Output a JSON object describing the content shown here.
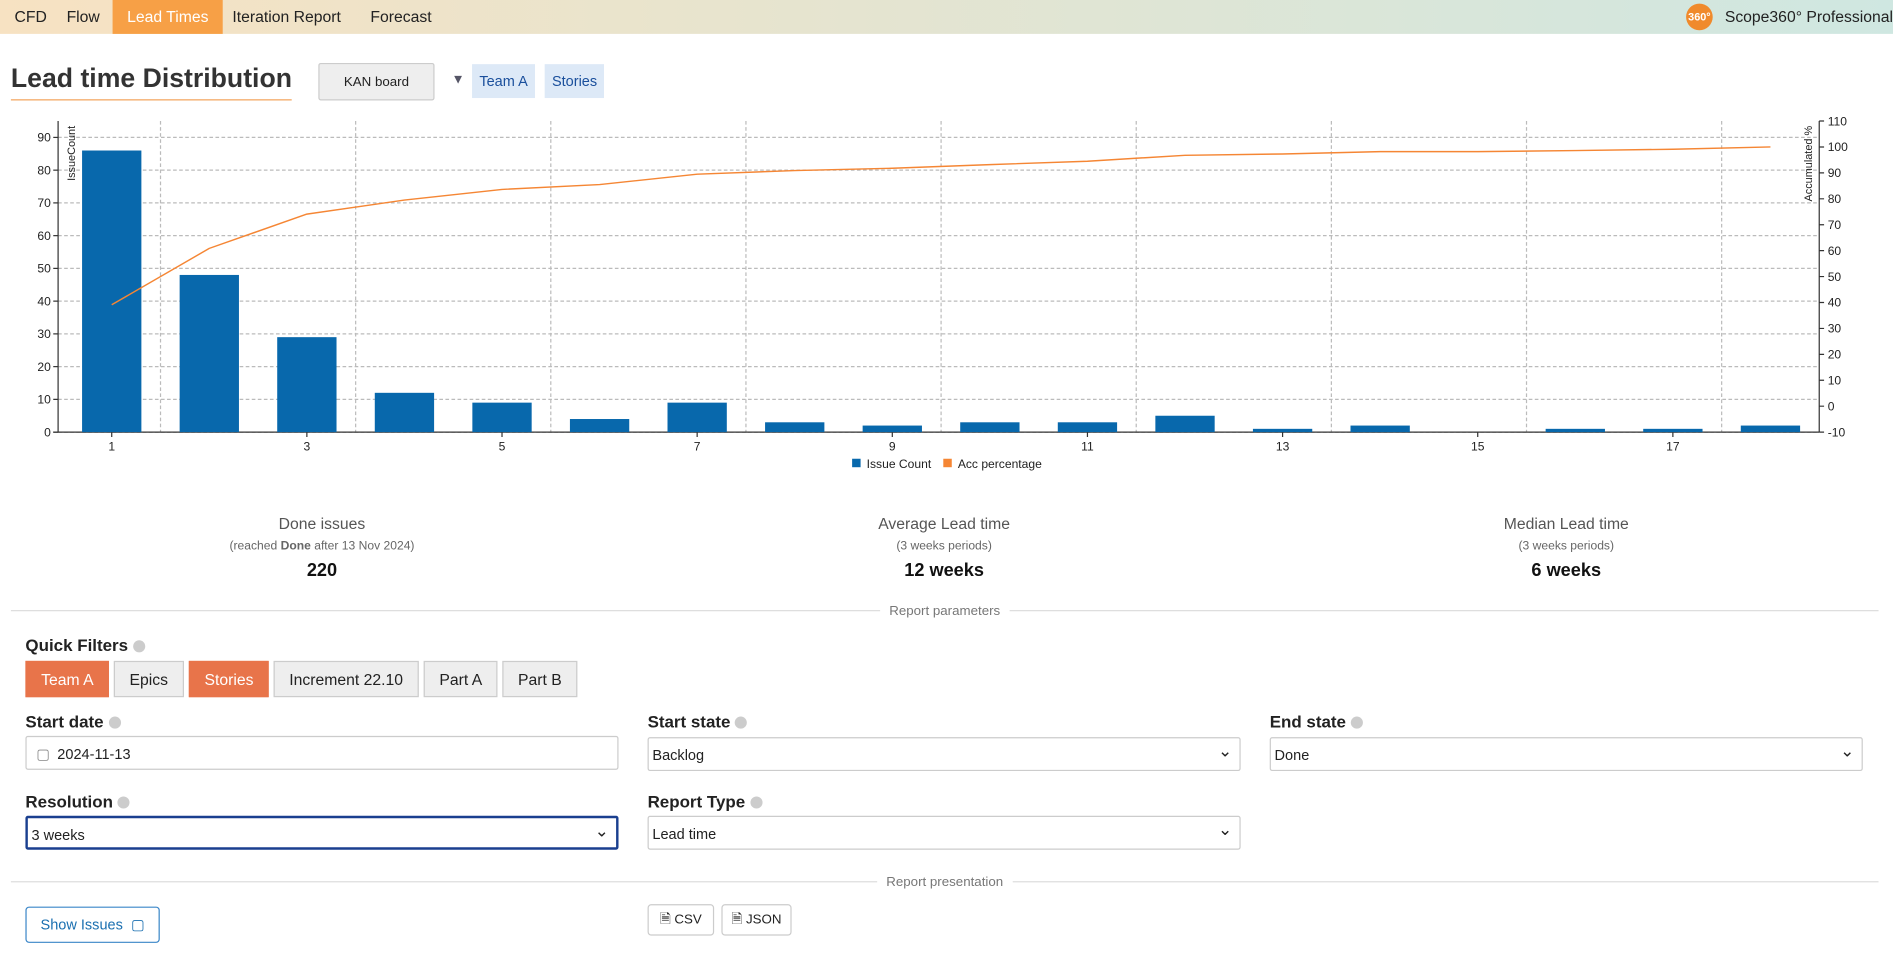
{
  "nav": {
    "items": [
      "CFD",
      "Flow",
      "Lead Times",
      "Iteration Report",
      "Forecast"
    ],
    "active": 2,
    "logo": "360°",
    "brand": "Scope360° Professional"
  },
  "header": {
    "title": "Lead time Distribution",
    "board": "KAN board",
    "filters": [
      "Team A",
      "Stories"
    ]
  },
  "chart_data": {
    "type": "bar",
    "categories": [
      "1",
      null,
      "3",
      null,
      "5",
      null,
      "7",
      null,
      "9",
      null,
      "11",
      null,
      "13",
      null,
      "15",
      null,
      "17",
      null
    ],
    "series": [
      {
        "name": "Issue Count",
        "type": "bar",
        "color": "#0868ac",
        "values": [
          86,
          48,
          29,
          12,
          9,
          4,
          9,
          3,
          2,
          3,
          3,
          5,
          1,
          2,
          0,
          1,
          1,
          2
        ]
      },
      {
        "name": "Acc percentage",
        "type": "line",
        "axis": "y2",
        "color": "#f58634",
        "values": [
          39.1,
          60.9,
          74.1,
          79.5,
          83.6,
          85.5,
          89.5,
          90.9,
          91.8,
          93.2,
          94.5,
          96.8,
          97.3,
          98.2,
          98.2,
          98.6,
          99.1,
          100
        ]
      }
    ],
    "ylabel": "IssueCount",
    "y2label": "Accumulated %",
    "ylim": [
      0,
      95
    ],
    "yticks": [
      0,
      10,
      20,
      30,
      40,
      50,
      60,
      70,
      80,
      90
    ],
    "y2lim": [
      -10,
      110
    ],
    "y2ticks": [
      -10,
      0,
      10,
      20,
      30,
      40,
      50,
      60,
      70,
      80,
      90,
      100,
      110
    ],
    "grid": true
  },
  "stats": [
    {
      "label": "Done issues",
      "note": [
        "(reached ",
        "Done",
        " after 13 Nov 2024)"
      ],
      "value": "220"
    },
    {
      "label": "Average Lead time",
      "note": [
        "(3 weeks periods)"
      ],
      "value": "12 weeks"
    },
    {
      "label": "Median Lead time",
      "note": [
        "(3 weeks periods)"
      ],
      "value": "6 weeks"
    }
  ],
  "parameters": {
    "heading": "Report parameters",
    "quick_filters": {
      "label": "Quick Filters",
      "items": [
        {
          "text": "Team A",
          "active": true
        },
        {
          "text": "Epics",
          "active": false
        },
        {
          "text": "Stories",
          "active": true
        },
        {
          "text": "Increment 22.10",
          "active": false
        },
        {
          "text": "Part A",
          "active": false
        },
        {
          "text": "Part B",
          "active": false
        }
      ]
    },
    "start_date": {
      "label": "Start date",
      "value": "2024-11-13"
    },
    "start_state": {
      "label": "Start state",
      "value": "Backlog"
    },
    "end_state": {
      "label": "End state",
      "value": "Done"
    },
    "resolution": {
      "label": "Resolution",
      "value": "3 weeks"
    },
    "report_type": {
      "label": "Report Type",
      "value": "Lead time"
    }
  },
  "presentation": {
    "heading": "Report presentation",
    "show_issues": "Show Issues",
    "exports": [
      "CSV",
      "JSON"
    ]
  }
}
